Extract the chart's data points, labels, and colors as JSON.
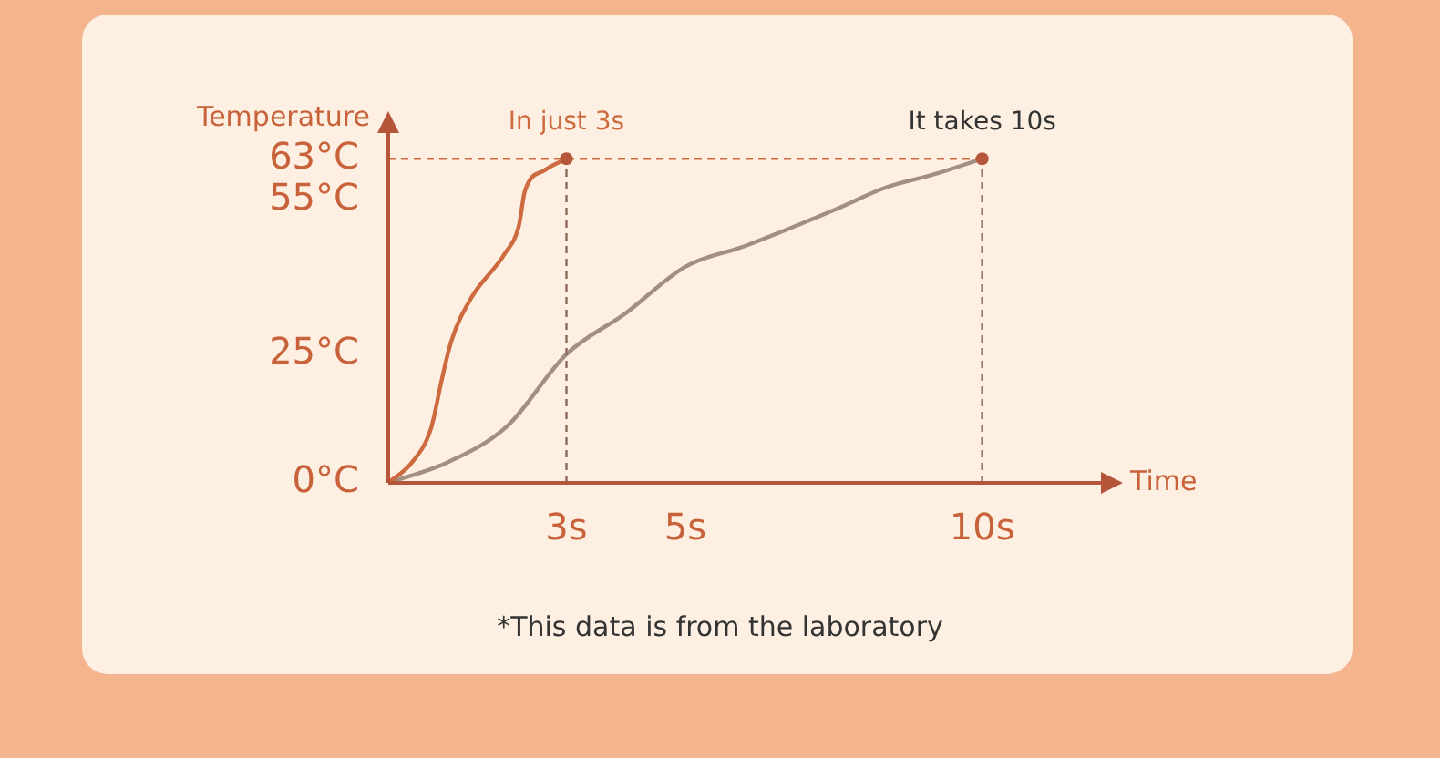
{
  "chart_data": {
    "type": "line",
    "xlabel": "Time",
    "ylabel": "Temperature",
    "xlim": [
      0,
      12
    ],
    "ylim": [
      0,
      68
    ],
    "xticks": [
      {
        "value": 3,
        "label": "3s"
      },
      {
        "value": 5,
        "label": "5s"
      },
      {
        "value": 10,
        "label": "10s"
      }
    ],
    "yticks": [
      {
        "value": 0,
        "label": "0°C"
      },
      {
        "value": 25,
        "label": "25°C"
      },
      {
        "value": 55,
        "label": "55°C"
      },
      {
        "value": 63,
        "label": "63°C"
      }
    ],
    "series": [
      {
        "color": "#cd6a3f",
        "x": [
          0,
          0.4,
          0.72,
          0.9,
          1.06,
          1.4,
          1.96,
          2.2,
          2.3,
          2.64,
          3
        ],
        "values": [
          0,
          4,
          10.6,
          20,
          27.5,
          36,
          44.5,
          50,
          56.7,
          60.8,
          63
        ]
      },
      {
        "color": "#a38f80",
        "x": [
          0,
          1,
          2,
          3,
          4,
          5,
          6,
          7.5,
          8.4,
          9.2,
          10
        ],
        "values": [
          0,
          4,
          11,
          25,
          33,
          42,
          46,
          53,
          57.5,
          60,
          63
        ]
      }
    ],
    "ref_lines": [
      {
        "axis": "y",
        "value": 63,
        "color": "#cd6a3f",
        "line_style": "dashed"
      },
      {
        "axis": "x",
        "value": 3,
        "color": "#8a6a5a",
        "line_style": "dashed"
      },
      {
        "axis": "x",
        "value": 10,
        "color": "#8a6a5a",
        "line_style": "dashed"
      }
    ],
    "annotations": [
      {
        "text": "In just 3s",
        "x": 3,
        "y": 63
      },
      {
        "text": "It takes 10s",
        "x": 10,
        "y": 63
      },
      "*This data is from the laboratory"
    ],
    "grid": false,
    "legend": false,
    "marker": "none",
    "line_style": "solid"
  }
}
